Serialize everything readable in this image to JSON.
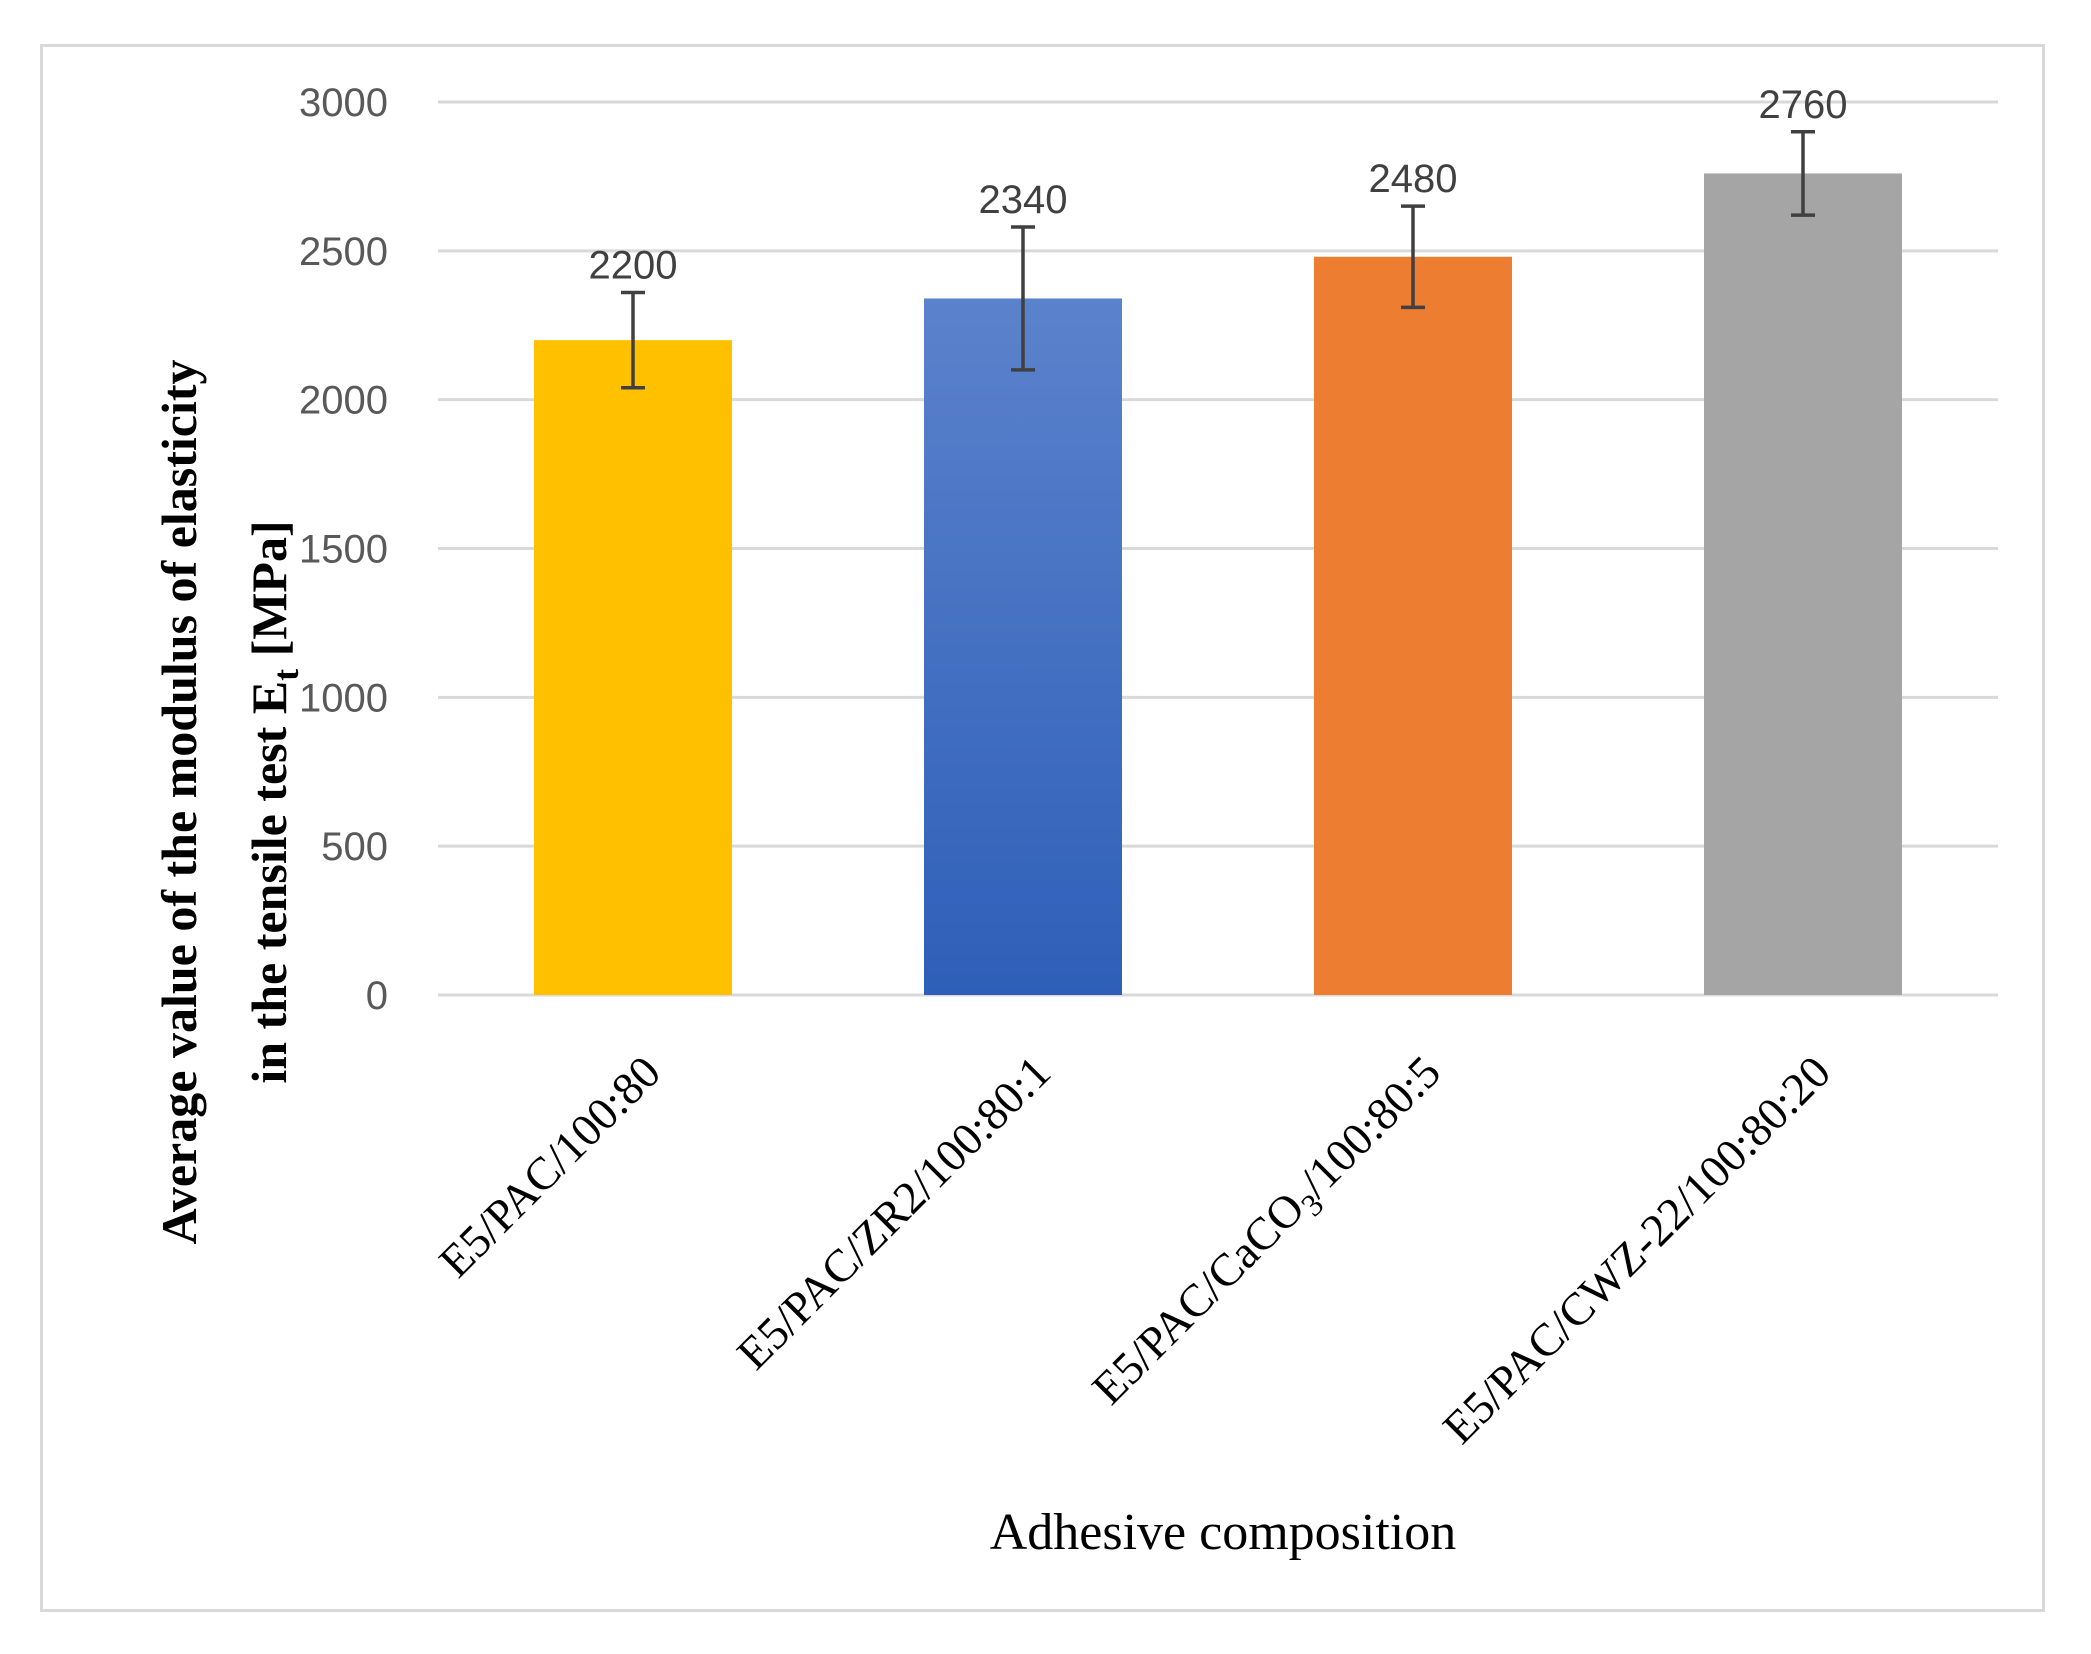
{
  "chart_data": {
    "type": "bar",
    "title": "",
    "xlabel": "Adhesive composition",
    "ylabel": {
      "line1": "Average value of the modulus of elasticity",
      "line2_prefix": "in the tensile test E",
      "line2_sub": "t",
      "line2_suffix": " [MPa]"
    },
    "ylim": [
      0,
      3000
    ],
    "yticks": [
      "0",
      "500",
      "1000",
      "1500",
      "2000",
      "2500",
      "3000"
    ],
    "grid": true,
    "categories": [
      {
        "pre": "E5/PAC/100:80",
        "sub": "",
        "post": ""
      },
      {
        "pre": "E5/PAC/ZR2/100:80:1",
        "sub": "",
        "post": ""
      },
      {
        "pre": "E5/PAC/CaCO",
        "sub": "3",
        "post": "/100:80:5"
      },
      {
        "pre": "E5/PAC/CWZ-22/100:80:20",
        "sub": "",
        "post": ""
      }
    ],
    "values": [
      2200,
      2340,
      2480,
      2760
    ],
    "error": [
      160,
      240,
      170,
      140
    ],
    "data_labels": [
      "2200",
      "2340",
      "2480",
      "2760"
    ],
    "colors": [
      "#FFC000",
      "#4472C4",
      "#ED7D31",
      "#A5A5A5"
    ],
    "gradient": [
      false,
      true,
      false,
      false
    ]
  }
}
